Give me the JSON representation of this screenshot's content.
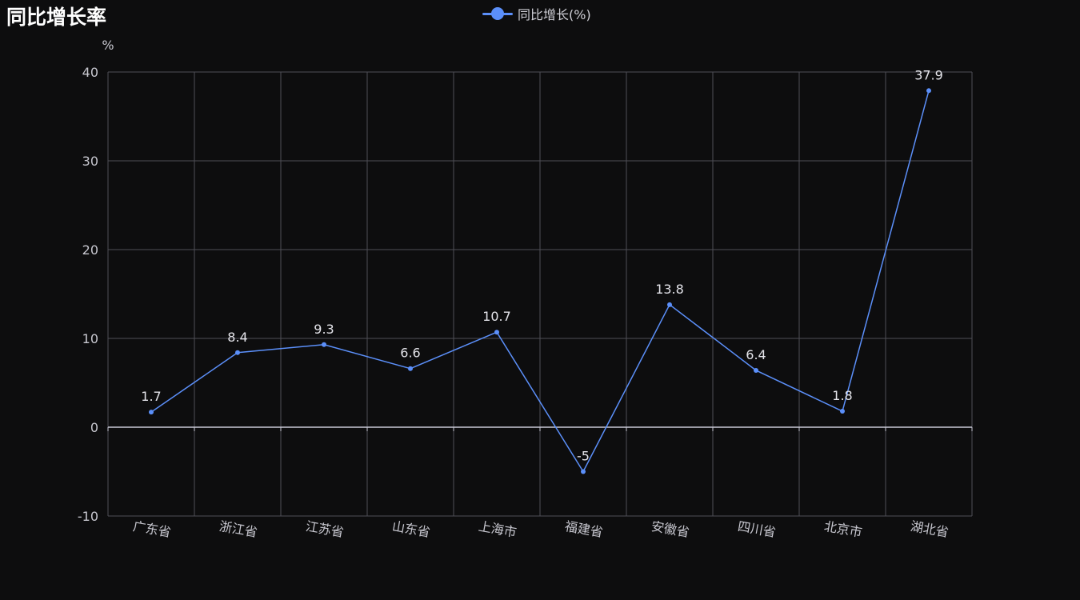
{
  "title": "同比增长率",
  "legend": {
    "label": "同比增长(%)"
  },
  "colors": {
    "series": "#5b8ff9",
    "grid": "#4e4e56",
    "zero_axis": "#c9c9d6",
    "background": "#0d0d0e"
  },
  "chart_data": {
    "type": "line",
    "title": "同比增长率",
    "ylabel": "%",
    "xlabel": "",
    "categories": [
      "广东省",
      "浙江省",
      "江苏省",
      "山东省",
      "上海市",
      "福建省",
      "安徽省",
      "四川省",
      "北京市",
      "湖北省"
    ],
    "series": [
      {
        "name": "同比增长(%)",
        "values": [
          1.7,
          8.4,
          9.3,
          6.6,
          10.7,
          -5,
          13.8,
          6.4,
          1.8,
          37.9
        ]
      }
    ],
    "ylim": [
      -10,
      40
    ],
    "yticks": [
      -10,
      0,
      10,
      20,
      30,
      40
    ],
    "grid": true,
    "legend_position": "top-center",
    "data_labels": true
  }
}
